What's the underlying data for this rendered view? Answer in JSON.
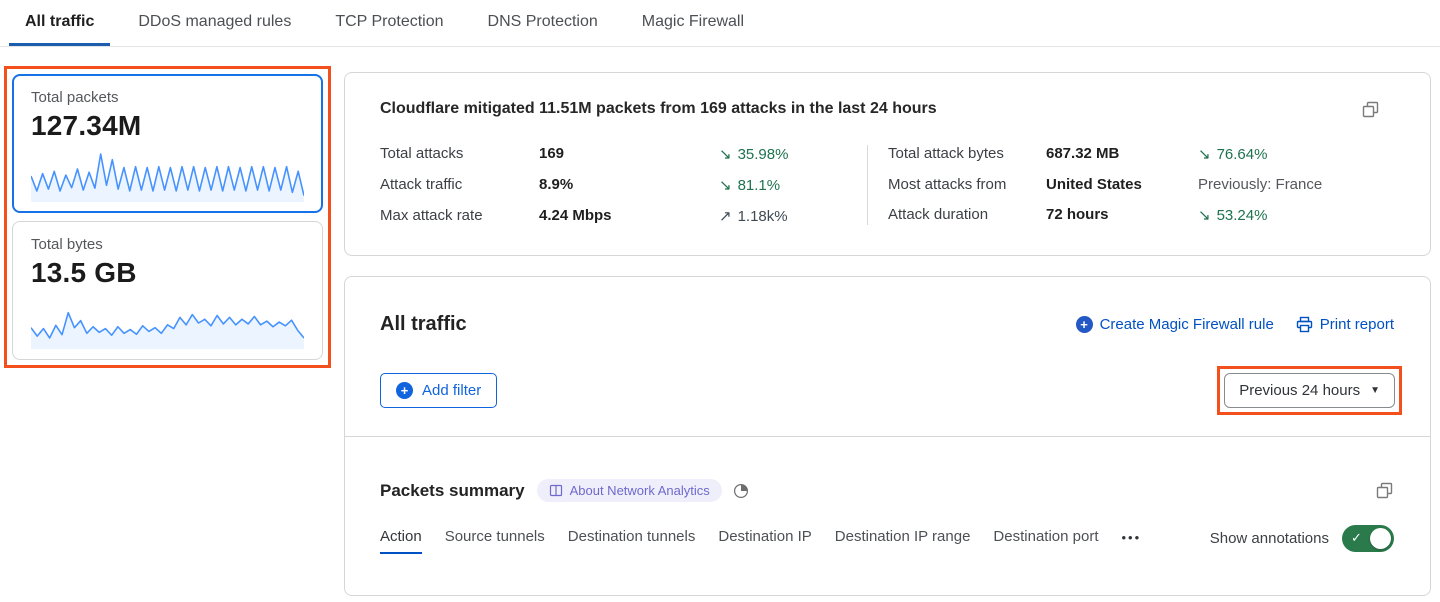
{
  "colors": {
    "link_blue": "#0051c3",
    "bright_blue": "#1064dd",
    "selected_card_border": "#1672e6",
    "tab_underline": "#1c5dae",
    "sparkline_blue": "#4693ff",
    "annotation_orange": "#f3501e",
    "trend_green": "#1e724e",
    "toggle_green": "#2b7a4b",
    "badge_purple": "#6e6acb",
    "badge_bg": "#efeefb"
  },
  "tabbar": {
    "tabs": [
      {
        "label": "All traffic",
        "active": true
      },
      {
        "label": "DDoS managed rules",
        "active": false
      },
      {
        "label": "TCP Protection",
        "active": false
      },
      {
        "label": "DNS Protection",
        "active": false
      },
      {
        "label": "Magic Firewall",
        "active": false
      }
    ]
  },
  "sidebar": {
    "cards": [
      {
        "title": "Total packets",
        "value": "127.34M",
        "selected": true,
        "sparkline": [
          50,
          18,
          55,
          22,
          60,
          18,
          52,
          25,
          65,
          20,
          58,
          24,
          97,
          30,
          85,
          22,
          68,
          18,
          70,
          20,
          68,
          18,
          70,
          20,
          68,
          18,
          70,
          20,
          70,
          18,
          68,
          20,
          70,
          18,
          70,
          20,
          68,
          18,
          70,
          20,
          70,
          18,
          68,
          20,
          70,
          15,
          60,
          8
        ]
      },
      {
        "title": "Total bytes",
        "value": "13.5 GB",
        "selected": false,
        "sparkline": [
          40,
          22,
          38,
          18,
          45,
          25,
          72,
          40,
          55,
          28,
          42,
          30,
          38,
          24,
          42,
          28,
          36,
          26,
          44,
          32,
          40,
          28,
          46,
          38,
          62,
          46,
          68,
          50,
          58,
          44,
          66,
          48,
          62,
          46,
          58,
          48,
          64,
          46,
          54,
          42,
          52,
          44,
          56,
          34,
          18
        ]
      }
    ]
  },
  "summary_card": {
    "title": "Cloudflare mitigated 11.51M packets from 169 attacks in the last 24 hours",
    "left_stats": [
      {
        "label": "Total attacks",
        "value": "169",
        "arrow": "↘",
        "delta": "35.98%"
      },
      {
        "label": "Attack traffic",
        "value": "8.9%",
        "arrow": "↘",
        "delta": "81.1%"
      },
      {
        "label": "Max attack rate",
        "value": "4.24 Mbps",
        "arrow": "↗",
        "delta": "1.18k%"
      }
    ],
    "right_stats": [
      {
        "label": "Total attack bytes",
        "value": "687.32 MB",
        "arrow": "↘",
        "delta": "76.64%"
      },
      {
        "label": "Most attacks from",
        "value": "United States",
        "arrow": "",
        "delta": "Previously: France"
      },
      {
        "label": "Attack duration",
        "value": "72 hours",
        "arrow": "↘",
        "delta": "53.24%"
      }
    ]
  },
  "traffic_card": {
    "title": "All traffic",
    "create_rule_label": "Create Magic Firewall rule",
    "print_report_label": "Print report",
    "add_filter_label": "Add filter",
    "plus_glyph": "+",
    "time_range_label": "Previous 24 hours",
    "caret_glyph": "▼"
  },
  "packets_summary": {
    "title": "Packets summary",
    "badge_label": "About Network Analytics",
    "tabs": [
      {
        "label": "Action",
        "active": true
      },
      {
        "label": "Source tunnels",
        "active": false
      },
      {
        "label": "Destination tunnels",
        "active": false
      },
      {
        "label": "Destination IP",
        "active": false
      },
      {
        "label": "Destination IP range",
        "active": false
      },
      {
        "label": "Destination port",
        "active": false
      }
    ],
    "more_label": "•••",
    "show_annotations_label": "Show annotations",
    "toggle_state": "on",
    "toggle_check_glyph": "✓"
  }
}
